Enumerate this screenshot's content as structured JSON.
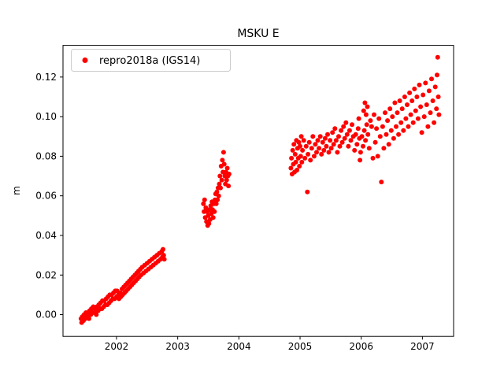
{
  "title": "MSKU E",
  "ylabel": "m",
  "legend": {
    "label": "repro2018a (IGS14)"
  },
  "colors": {
    "marker": "#ff0000",
    "axis": "#000000",
    "background": "#ffffff",
    "legend_border": "#cccccc"
  },
  "chart_data": {
    "type": "scatter",
    "title": "MSKU E",
    "xlabel": "",
    "ylabel": "m",
    "grid": false,
    "legend_position": "upper left",
    "xlim": [
      2001.125,
      2007.51
    ],
    "ylim": [
      -0.011,
      0.136
    ],
    "xticks": [
      2002,
      2003,
      2004,
      2005,
      2006,
      2007
    ],
    "xtick_labels": [
      "2002",
      "2003",
      "2004",
      "2005",
      "2006",
      "2007"
    ],
    "yticks": [
      0.0,
      0.02,
      0.04,
      0.06,
      0.08,
      0.1,
      0.12
    ],
    "ytick_labels": [
      "0.00",
      "0.02",
      "0.04",
      "0.06",
      "0.08",
      "0.10",
      "0.12"
    ],
    "series": [
      {
        "name": "repro2018a (IGS14)",
        "color": "#ff0000",
        "marker": "circle",
        "marker_radius": 3,
        "points": [
          [
            2001.42,
            -0.002
          ],
          [
            2001.43,
            -0.004
          ],
          [
            2001.44,
            -0.001
          ],
          [
            2001.46,
            -0.003
          ],
          [
            2001.47,
            0.0
          ],
          [
            2001.49,
            -0.002
          ],
          [
            2001.5,
            0.001
          ],
          [
            2001.52,
            -0.001
          ],
          [
            2001.53,
            0.001
          ],
          [
            2001.55,
            -0.002
          ],
          [
            2001.56,
            0.002
          ],
          [
            2001.58,
            0.0
          ],
          [
            2001.59,
            0.003
          ],
          [
            2001.61,
            0.001
          ],
          [
            2001.62,
            0.004
          ],
          [
            2001.64,
            0.001
          ],
          [
            2001.65,
            0.003
          ],
          [
            2001.67,
            0.0
          ],
          [
            2001.68,
            0.004
          ],
          [
            2001.7,
            0.002
          ],
          [
            2001.71,
            0.005
          ],
          [
            2001.73,
            0.003
          ],
          [
            2001.74,
            0.006
          ],
          [
            2001.76,
            0.003
          ],
          [
            2001.77,
            0.007
          ],
          [
            2001.79,
            0.004
          ],
          [
            2001.8,
            0.007
          ],
          [
            2001.82,
            0.005
          ],
          [
            2001.83,
            0.008
          ],
          [
            2001.85,
            0.005
          ],
          [
            2001.86,
            0.009
          ],
          [
            2001.88,
            0.006
          ],
          [
            2001.89,
            0.01
          ],
          [
            2001.91,
            0.007
          ],
          [
            2001.92,
            0.01
          ],
          [
            2001.94,
            0.008
          ],
          [
            2001.95,
            0.011
          ],
          [
            2001.97,
            0.008
          ],
          [
            2001.98,
            0.012
          ],
          [
            2002.0,
            0.009
          ],
          [
            2002.01,
            0.012
          ],
          [
            2002.03,
            0.01
          ],
          [
            2002.04,
            0.008
          ],
          [
            2002.06,
            0.011
          ],
          [
            2002.07,
            0.009
          ],
          [
            2002.09,
            0.013
          ],
          [
            2002.1,
            0.01
          ],
          [
            2002.12,
            0.014
          ],
          [
            2002.13,
            0.011
          ],
          [
            2002.15,
            0.015
          ],
          [
            2002.16,
            0.012
          ],
          [
            2002.18,
            0.016
          ],
          [
            2002.19,
            0.013
          ],
          [
            2002.21,
            0.017
          ],
          [
            2002.22,
            0.014
          ],
          [
            2002.24,
            0.018
          ],
          [
            2002.25,
            0.015
          ],
          [
            2002.27,
            0.019
          ],
          [
            2002.28,
            0.016
          ],
          [
            2002.3,
            0.02
          ],
          [
            2002.31,
            0.017
          ],
          [
            2002.33,
            0.021
          ],
          [
            2002.34,
            0.018
          ],
          [
            2002.36,
            0.022
          ],
          [
            2002.37,
            0.019
          ],
          [
            2002.39,
            0.023
          ],
          [
            2002.4,
            0.02
          ],
          [
            2002.42,
            0.024
          ],
          [
            2002.44,
            0.021
          ],
          [
            2002.46,
            0.025
          ],
          [
            2002.48,
            0.022
          ],
          [
            2002.5,
            0.026
          ],
          [
            2002.52,
            0.023
          ],
          [
            2002.54,
            0.027
          ],
          [
            2002.56,
            0.024
          ],
          [
            2002.58,
            0.028
          ],
          [
            2002.6,
            0.025
          ],
          [
            2002.62,
            0.029
          ],
          [
            2002.64,
            0.026
          ],
          [
            2002.66,
            0.03
          ],
          [
            2002.68,
            0.027
          ],
          [
            2002.7,
            0.031
          ],
          [
            2002.72,
            0.028
          ],
          [
            2002.74,
            0.032
          ],
          [
            2002.75,
            0.029
          ],
          [
            2002.76,
            0.033
          ],
          [
            2002.77,
            0.03
          ],
          [
            2002.78,
            0.028
          ],
          [
            2003.42,
            0.056
          ],
          [
            2003.43,
            0.052
          ],
          [
            2003.44,
            0.058
          ],
          [
            2003.45,
            0.049
          ],
          [
            2003.46,
            0.054
          ],
          [
            2003.47,
            0.047
          ],
          [
            2003.48,
            0.052
          ],
          [
            2003.49,
            0.045
          ],
          [
            2003.5,
            0.05
          ],
          [
            2003.51,
            0.046
          ],
          [
            2003.52,
            0.053
          ],
          [
            2003.53,
            0.048
          ],
          [
            2003.54,
            0.055
          ],
          [
            2003.55,
            0.051
          ],
          [
            2003.56,
            0.057
          ],
          [
            2003.57,
            0.053
          ],
          [
            2003.58,
            0.049
          ],
          [
            2003.59,
            0.056
          ],
          [
            2003.6,
            0.052
          ],
          [
            2003.61,
            0.058
          ],
          [
            2003.62,
            0.061
          ],
          [
            2003.63,
            0.056
          ],
          [
            2003.64,
            0.062
          ],
          [
            2003.65,
            0.058
          ],
          [
            2003.66,
            0.064
          ],
          [
            2003.67,
            0.06
          ],
          [
            2003.68,
            0.066
          ],
          [
            2003.69,
            0.07
          ],
          [
            2003.7,
            0.064
          ],
          [
            2003.71,
            0.075
          ],
          [
            2003.72,
            0.068
          ],
          [
            2003.73,
            0.078
          ],
          [
            2003.74,
            0.072
          ],
          [
            2003.75,
            0.082
          ],
          [
            2003.76,
            0.076
          ],
          [
            2003.77,
            0.07
          ],
          [
            2003.78,
            0.066
          ],
          [
            2003.79,
            0.072
          ],
          [
            2003.8,
            0.068
          ],
          [
            2003.81,
            0.074
          ],
          [
            2003.82,
            0.07
          ],
          [
            2003.83,
            0.065
          ],
          [
            2003.84,
            0.071
          ],
          [
            2004.85,
            0.074
          ],
          [
            2004.86,
            0.079
          ],
          [
            2004.87,
            0.071
          ],
          [
            2004.88,
            0.083
          ],
          [
            2004.89,
            0.076
          ],
          [
            2004.9,
            0.086
          ],
          [
            2004.91,
            0.072
          ],
          [
            2004.92,
            0.081
          ],
          [
            2004.93,
            0.077
          ],
          [
            2004.94,
            0.088
          ],
          [
            2004.95,
            0.073
          ],
          [
            2004.96,
            0.084
          ],
          [
            2004.97,
            0.079
          ],
          [
            2004.98,
            0.087
          ],
          [
            2004.99,
            0.075
          ],
          [
            2005.0,
            0.085
          ],
          [
            2005.01,
            0.08
          ],
          [
            2005.02,
            0.09
          ],
          [
            2005.03,
            0.077
          ],
          [
            2005.04,
            0.083
          ],
          [
            2005.06,
            0.088
          ],
          [
            2005.08,
            0.079
          ],
          [
            2005.1,
            0.085
          ],
          [
            2005.12,
            0.062
          ],
          [
            2005.13,
            0.081
          ],
          [
            2005.15,
            0.087
          ],
          [
            2005.17,
            0.078
          ],
          [
            2005.19,
            0.084
          ],
          [
            2005.21,
            0.09
          ],
          [
            2005.23,
            0.08
          ],
          [
            2005.25,
            0.086
          ],
          [
            2005.27,
            0.082
          ],
          [
            2005.29,
            0.088
          ],
          [
            2005.31,
            0.084
          ],
          [
            2005.33,
            0.09
          ],
          [
            2005.35,
            0.081
          ],
          [
            2005.37,
            0.087
          ],
          [
            2005.39,
            0.083
          ],
          [
            2005.41,
            0.089
          ],
          [
            2005.43,
            0.085
          ],
          [
            2005.45,
            0.091
          ],
          [
            2005.47,
            0.082
          ],
          [
            2005.49,
            0.088
          ],
          [
            2005.51,
            0.084
          ],
          [
            2005.53,
            0.092
          ],
          [
            2005.55,
            0.086
          ],
          [
            2005.57,
            0.094
          ],
          [
            2005.59,
            0.088
          ],
          [
            2005.61,
            0.082
          ],
          [
            2005.63,
            0.09
          ],
          [
            2005.65,
            0.085
          ],
          [
            2005.67,
            0.093
          ],
          [
            2005.69,
            0.087
          ],
          [
            2005.71,
            0.095
          ],
          [
            2005.73,
            0.089
          ],
          [
            2005.75,
            0.097
          ],
          [
            2005.77,
            0.091
          ],
          [
            2005.79,
            0.085
          ],
          [
            2005.81,
            0.093
          ],
          [
            2005.83,
            0.088
          ],
          [
            2005.85,
            0.096
          ],
          [
            2005.87,
            0.09
          ],
          [
            2005.89,
            0.083
          ],
          [
            2005.91,
            0.091
          ],
          [
            2005.93,
            0.086
          ],
          [
            2005.95,
            0.094
          ],
          [
            2005.96,
            0.099
          ],
          [
            2005.97,
            0.089
          ],
          [
            2005.98,
            0.078
          ],
          [
            2005.99,
            0.082
          ],
          [
            2006.01,
            0.09
          ],
          [
            2006.03,
            0.085
          ],
          [
            2006.04,
            0.103
          ],
          [
            2006.05,
            0.093
          ],
          [
            2006.06,
            0.107
          ],
          [
            2006.07,
            0.088
          ],
          [
            2006.08,
            0.101
          ],
          [
            2006.09,
            0.096
          ],
          [
            2006.1,
            0.105
          ],
          [
            2006.11,
            0.091
          ],
          [
            2006.13,
            0.084
          ],
          [
            2006.15,
            0.098
          ],
          [
            2006.17,
            0.095
          ],
          [
            2006.19,
            0.079
          ],
          [
            2006.21,
            0.101
          ],
          [
            2006.23,
            0.087
          ],
          [
            2006.25,
            0.094
          ],
          [
            2006.27,
            0.08
          ],
          [
            2006.29,
            0.099
          ],
          [
            2006.31,
            0.09
          ],
          [
            2006.33,
            0.067
          ],
          [
            2006.35,
            0.095
          ],
          [
            2006.37,
            0.084
          ],
          [
            2006.39,
            0.102
          ],
          [
            2006.41,
            0.091
          ],
          [
            2006.43,
            0.098
          ],
          [
            2006.45,
            0.086
          ],
          [
            2006.47,
            0.104
          ],
          [
            2006.49,
            0.093
          ],
          [
            2006.51,
            0.1
          ],
          [
            2006.53,
            0.089
          ],
          [
            2006.55,
            0.107
          ],
          [
            2006.57,
            0.095
          ],
          [
            2006.59,
            0.102
          ],
          [
            2006.61,
            0.091
          ],
          [
            2006.63,
            0.108
          ],
          [
            2006.65,
            0.097
          ],
          [
            2006.67,
            0.104
          ],
          [
            2006.69,
            0.093
          ],
          [
            2006.71,
            0.11
          ],
          [
            2006.73,
            0.099
          ],
          [
            2006.75,
            0.106
          ],
          [
            2006.77,
            0.095
          ],
          [
            2006.79,
            0.112
          ],
          [
            2006.81,
            0.101
          ],
          [
            2006.83,
            0.108
          ],
          [
            2006.85,
            0.097
          ],
          [
            2006.87,
            0.114
          ],
          [
            2006.89,
            0.103
          ],
          [
            2006.91,
            0.11
          ],
          [
            2006.93,
            0.099
          ],
          [
            2006.95,
            0.116
          ],
          [
            2006.97,
            0.105
          ],
          [
            2006.99,
            0.092
          ],
          [
            2007.01,
            0.111
          ],
          [
            2007.03,
            0.1
          ],
          [
            2007.05,
            0.117
          ],
          [
            2007.07,
            0.106
          ],
          [
            2007.09,
            0.095
          ],
          [
            2007.11,
            0.113
          ],
          [
            2007.13,
            0.102
          ],
          [
            2007.15,
            0.119
          ],
          [
            2007.17,
            0.108
          ],
          [
            2007.19,
            0.097
          ],
          [
            2007.21,
            0.115
          ],
          [
            2007.23,
            0.104
          ],
          [
            2007.24,
            0.121
          ],
          [
            2007.25,
            0.13
          ],
          [
            2007.26,
            0.11
          ],
          [
            2007.27,
            0.101
          ]
        ]
      }
    ]
  }
}
